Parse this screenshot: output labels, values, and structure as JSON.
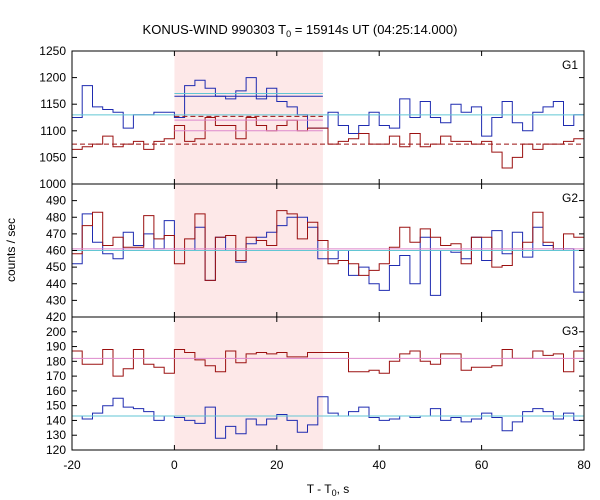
{
  "chart_data": {
    "type": "line",
    "title": {
      "prefix": "KONUS-WIND 990303 T",
      "sub": "0",
      "suffix": " = 15914s UT (04:25:14.000)"
    },
    "xlabel": {
      "prefix": "T - T",
      "sub": "0",
      "suffix": ", s"
    },
    "ylabel": "counts / sec",
    "xlim": [
      -20,
      80
    ],
    "xticks": [
      -20,
      0,
      20,
      40,
      60,
      80
    ],
    "shaded_interval": [
      0,
      29
    ],
    "colors": {
      "blue": "#1f2bb0",
      "red": "#9b1010",
      "cyan": "#62c6d4",
      "pink": "#dd88cc",
      "shade": "#fde8e8"
    },
    "panels": [
      {
        "name": "G1",
        "ylim": [
          1000,
          1250
        ],
        "yticks": [
          1000,
          1050,
          1100,
          1150,
          1200,
          1250
        ],
        "bin_start": -20,
        "bin_width": 2,
        "series": [
          {
            "name": "",
            "color": "blue",
            "values": [
              1125,
              1185,
              1145,
              1140,
              1135,
              1105,
              1130,
              1130,
              1135,
              1135,
              1125,
              1185,
              1195,
              1180,
              1165,
              1160,
              1175,
              1200,
              1160,
              1180,
              1155,
              1145,
              1130,
              1105,
              1105,
              1135,
              1110,
              1095,
              1110,
              1135,
              1110,
              1105,
              1160,
              1125,
              1155,
              1125,
              1115,
              1150,
              1135,
              1145,
              1090,
              1125,
              1155,
              1115,
              1100,
              1135,
              1145,
              1155,
              1110,
              1130
            ]
          },
          {
            "name": "",
            "color": "red",
            "values": [
              1065,
              1070,
              1075,
              1090,
              1070,
              1075,
              1080,
              1065,
              1080,
              1085,
              1110,
              1080,
              1085,
              1125,
              1110,
              1110,
              1085,
              1125,
              1110,
              1100,
              1110,
              1120,
              1100,
              1105,
              1105,
              1075,
              1080,
              1085,
              1095,
              1075,
              1075,
              1090,
              1070,
              1095,
              1070,
              1075,
              1090,
              1080,
              1080,
              1075,
              1080,
              1060,
              1030,
              1050,
              1075,
              1065,
              1075,
              1075,
              1080,
              1085
            ]
          }
        ],
        "fits": [
          {
            "color": "cyan",
            "dashed": false,
            "from": -20,
            "to": 80,
            "value": 1130
          },
          {
            "color": "cyan",
            "dashed": false,
            "from": 0,
            "to": 29,
            "value": 1170
          },
          {
            "color": "blue",
            "dashed": false,
            "from": 0,
            "to": 29,
            "value": 1165
          },
          {
            "color": "red",
            "dashed": true,
            "from": -20,
            "to": 80,
            "value": 1075
          },
          {
            "color": "red",
            "dashed": true,
            "from": 0,
            "to": 29,
            "value": 1127
          },
          {
            "color": "pink",
            "dashed": false,
            "from": 0,
            "to": 29,
            "value": 1120
          },
          {
            "color": "pink",
            "dashed": false,
            "from": 0,
            "to": 29,
            "value": 1100
          }
        ]
      },
      {
        "name": "G2",
        "ylim": [
          420,
          500
        ],
        "yticks": [
          420,
          430,
          440,
          450,
          460,
          470,
          480,
          490
        ],
        "bin_start": -20,
        "bin_width": 2,
        "series": [
          {
            "name": "",
            "color": "blue",
            "values": [
              452,
              482,
              465,
              458,
              455,
              471,
              463,
              470,
              461,
              478,
              460,
              460,
              474,
              442,
              468,
              460,
              453,
              464,
              468,
              471,
              475,
              480,
              480,
              474,
              455,
              455,
              460,
              445,
              450,
              440,
              436,
              451,
              457,
              440,
              468,
              433,
              460,
              459,
              455,
              468,
              454,
              472,
              458,
              471,
              456,
              474,
              463,
              461,
              461,
              435
            ]
          },
          {
            "name": "",
            "color": "red",
            "values": [
              458,
              475,
              483,
              463,
              468,
              462,
              462,
              481,
              467,
              469,
              452,
              467,
              482,
              442,
              468,
              469,
              454,
              468,
              466,
              463,
              484,
              482,
              467,
              477,
              466,
              452,
              454,
              452,
              445,
              448,
              452,
              462,
              474,
              465,
              473,
              468,
              463,
              464,
              452,
              468,
              468,
              450,
              451,
              460,
              465,
              483,
              465,
              460,
              470,
              468
            ]
          }
        ],
        "fits": [
          {
            "color": "cyan",
            "dashed": false,
            "from": -20,
            "to": 80,
            "value": 460
          },
          {
            "color": "pink",
            "dashed": false,
            "from": -20,
            "to": 80,
            "value": 461
          }
        ]
      },
      {
        "name": "G3",
        "ylim": [
          120,
          210
        ],
        "yticks": [
          120,
          130,
          140,
          150,
          160,
          170,
          180,
          190,
          200
        ],
        "bin_start": -20,
        "bin_width": 2,
        "series": [
          {
            "name": "",
            "color": "blue",
            "values": [
              143,
              141,
              145,
              150,
              155,
              149,
              148,
              146,
              140,
              143,
              142,
              140,
              138,
              149,
              128,
              136,
              131,
              141,
              137,
              141,
              144,
              140,
              132,
              137,
              156,
              145,
              143,
              146,
              149,
              142,
              140,
              141,
              143,
              142,
              143,
              148,
              140,
              142,
              139,
              141,
              145,
              142,
              133,
              139,
              146,
              148,
              146,
              141,
              145,
              140
            ]
          },
          {
            "name": "",
            "color": "red",
            "values": [
              187,
              178,
              178,
              188,
              170,
              175,
              188,
              178,
              176,
              172,
              188,
              186,
              181,
              177,
              173,
              187,
              179,
              185,
              186,
              185,
              186,
              183,
              183,
              186,
              186,
              186,
              186,
              173,
              173,
              174,
              172,
              180,
              185,
              187,
              180,
              178,
              185,
              185,
              174,
              176,
              176,
              177,
              188,
              182,
              182,
              187,
              184,
              185,
              173,
              187
            ]
          }
        ],
        "fits": [
          {
            "color": "cyan",
            "dashed": false,
            "from": -20,
            "to": 80,
            "value": 143
          },
          {
            "color": "pink",
            "dashed": false,
            "from": -20,
            "to": 80,
            "value": 182
          }
        ]
      }
    ]
  }
}
